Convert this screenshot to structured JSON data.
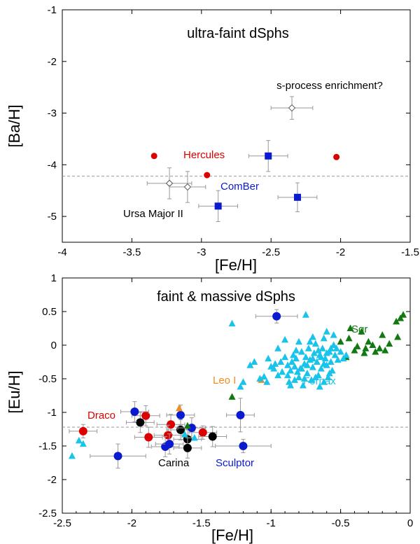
{
  "colors": {
    "red": "#dd0000",
    "blue": "#0a1ad0",
    "cyan": "#19c3e9",
    "green": "#127812",
    "orange": "#f28c1c",
    "black": "#000000",
    "grey": "#999999"
  },
  "chart_data": [
    {
      "type": "scatter",
      "title": "ultra-faint dSphs",
      "xlabel": "[Fe/H]",
      "ylabel": "[Ba/H]",
      "xlim": [
        -4,
        -1.5
      ],
      "ylim": [
        -5.5,
        -1
      ],
      "xticks": [
        "-4",
        "-3.5",
        "-3",
        "-2.5",
        "-2",
        "-1.5"
      ],
      "yticks": [
        "-1",
        "-2",
        "-3",
        "-4",
        "-5"
      ],
      "reference_line_y": -4.22,
      "annotations": [
        {
          "text": "s-process enrichment?",
          "color": "black"
        },
        {
          "text": "Hercules",
          "color": "red"
        },
        {
          "text": "ComBer",
          "color": "blue"
        },
        {
          "text": "Ursa Major II",
          "color": "black"
        }
      ],
      "series": [
        {
          "name": "Hercules",
          "marker": "circle",
          "color": "red",
          "points": [
            [
              -3.34,
              -3.83,
              0,
              0
            ],
            [
              -2.96,
              -4.2,
              0,
              0
            ],
            [
              -2.03,
              -3.85,
              0,
              0
            ]
          ]
        },
        {
          "name": "ComBer",
          "marker": "square",
          "color": "blue",
          "points": [
            [
              -2.52,
              -3.83,
              0.14,
              0.3
            ],
            [
              -2.31,
              -4.63,
              0.14,
              0.28
            ],
            [
              -2.88,
              -4.8,
              0.14,
              0.3
            ]
          ]
        },
        {
          "name": "Ursa Major II",
          "marker": "diamond",
          "color": "black",
          "points": [
            [
              -3.23,
              -4.36,
              0.16,
              0.3
            ],
            [
              -3.1,
              -4.43,
              0.13,
              0.3
            ]
          ]
        },
        {
          "name": "s-process enrichment?",
          "marker": "diamond",
          "color": "black",
          "points": [
            [
              -2.35,
              -2.9,
              0.15,
              0.22
            ]
          ]
        }
      ]
    },
    {
      "type": "scatter",
      "title": "faint & massive dSphs",
      "xlabel": "[Fe/H]",
      "ylabel": "[Eu/H]",
      "xlim": [
        -2.5,
        0
      ],
      "ylim": [
        -2.5,
        1
      ],
      "xticks": [
        "-2.5",
        "-2",
        "-1.5",
        "-1",
        "-0.5",
        "0"
      ],
      "yticks": [
        "1",
        "0.5",
        "0",
        "-0.5",
        "-1",
        "-1.5",
        "-2",
        "-2.5"
      ],
      "reference_line_y": -1.22,
      "annotations": [
        {
          "text": "Draco",
          "color": "red"
        },
        {
          "text": "Carina",
          "color": "black"
        },
        {
          "text": "Sculptor",
          "color": "blue"
        },
        {
          "text": "Leo I",
          "color": "orange"
        },
        {
          "text": "Fornax",
          "color": "cyan"
        },
        {
          "text": "Sgr",
          "color": "green"
        }
      ],
      "series": [
        {
          "name": "Draco",
          "marker": "circle",
          "color": "red",
          "points": [
            [
              -2.35,
              -1.28,
              0.1,
              0.1
            ],
            [
              -1.9,
              -1.05,
              0.1,
              0.15
            ],
            [
              -1.88,
              -1.37,
              0.1,
              0.15
            ],
            [
              -1.72,
              -1.18,
              0.1,
              0.15
            ],
            [
              -1.74,
              -1.34,
              0.1,
              0.15
            ],
            [
              -1.49,
              -1.3,
              0.1,
              0.1
            ]
          ]
        },
        {
          "name": "Carina",
          "marker": "circle",
          "color": "black",
          "points": [
            [
              -1.94,
              -1.15,
              0.1,
              0.15
            ],
            [
              -1.65,
              -1.26,
              0.1,
              0.15
            ],
            [
              -1.6,
              -1.4,
              0.1,
              0.15
            ],
            [
              -1.6,
              -1.53,
              0.1,
              0.15
            ],
            [
              -1.42,
              -1.36,
              0.1,
              0.15
            ]
          ]
        },
        {
          "name": "Sculptor",
          "marker": "circle",
          "color": "blue",
          "points": [
            [
              -2.1,
              -1.65,
              0.2,
              0.18
            ],
            [
              -1.98,
              -0.99,
              0.1,
              0.15
            ],
            [
              -1.65,
              -1.04,
              0.1,
              0.15
            ],
            [
              -1.76,
              -1.51,
              0.1,
              0.15
            ],
            [
              -1.73,
              -1.47,
              0.1,
              0.15
            ],
            [
              -1.57,
              -1.23,
              0.1,
              0.15
            ],
            [
              -1.22,
              -1.04,
              0.1,
              0.25
            ],
            [
              -1.2,
              -1.5,
              0.2,
              0.1
            ],
            [
              -0.96,
              0.43,
              0.15,
              0.1
            ]
          ]
        },
        {
          "name": "Leo I",
          "marker": "triangle",
          "color": "orange",
          "points": [
            [
              -1.66,
              -0.94
            ],
            [
              -1.07,
              -0.52
            ]
          ]
        },
        {
          "name": "Sgr",
          "marker": "triangle",
          "color": "green",
          "points": [
            [
              -1.28,
              -0.77
            ],
            [
              -1.6,
              -1.2
            ],
            [
              -0.2,
              0.15
            ],
            [
              -0.35,
              0.2
            ],
            [
              -0.43,
              0.25
            ],
            [
              -0.3,
              0.05
            ],
            [
              -0.32,
              -0.05
            ],
            [
              -0.38,
              -0.02
            ],
            [
              -0.27,
              0.0
            ],
            [
              -0.22,
              -0.05
            ],
            [
              -0.15,
              0.02
            ],
            [
              -0.1,
              0.35
            ],
            [
              -0.07,
              0.4
            ],
            [
              -0.05,
              0.45
            ],
            [
              -0.09,
              0.12
            ],
            [
              -0.44,
              0.1
            ],
            [
              -0.5,
              0.05
            ],
            [
              -0.25,
              -0.1
            ],
            [
              -0.18,
              -0.08
            ],
            [
              -0.33,
              -0.12
            ],
            [
              -0.46,
              -0.18
            ],
            [
              -0.4,
              -0.08
            ]
          ]
        },
        {
          "name": "Fornax",
          "marker": "triangle",
          "color": "cyan",
          "points": [
            [
              -2.43,
              -1.65
            ],
            [
              -2.38,
              -1.42
            ],
            [
              -2.35,
              -1.47
            ],
            [
              -1.62,
              -1.33
            ],
            [
              -1.55,
              -1.38
            ],
            [
              -1.03,
              -0.55
            ],
            [
              -1.08,
              -0.5
            ],
            [
              -1.15,
              -0.3
            ],
            [
              -1.2,
              -0.55
            ],
            [
              -1.22,
              -0.62
            ],
            [
              -1.28,
              0.32
            ],
            [
              -0.75,
              0.45
            ],
            [
              -1.05,
              -0.47
            ],
            [
              -1.12,
              -0.25
            ],
            [
              -0.98,
              -0.35
            ],
            [
              -0.95,
              -0.05
            ],
            [
              -0.9,
              0.08
            ],
            [
              -0.88,
              -0.45
            ],
            [
              -0.87,
              -0.55
            ],
            [
              -0.86,
              -0.6
            ],
            [
              -0.85,
              -0.25
            ],
            [
              -0.84,
              -0.15
            ],
            [
              -0.83,
              -0.32
            ],
            [
              -0.82,
              -0.2
            ],
            [
              -0.81,
              -0.4
            ],
            [
              -0.8,
              0.05
            ],
            [
              -0.79,
              -0.35
            ],
            [
              -0.78,
              -0.1
            ],
            [
              -0.77,
              -0.6
            ],
            [
              -0.76,
              -0.28
            ],
            [
              -0.75,
              -0.18
            ],
            [
              -0.74,
              -0.42
            ],
            [
              -0.73,
              -0.05
            ],
            [
              -0.72,
              -0.22
            ],
            [
              -0.71,
              -0.52
            ],
            [
              -0.7,
              -0.33
            ],
            [
              -0.69,
              -0.12
            ],
            [
              -0.68,
              0.02
            ],
            [
              -0.67,
              -0.25
            ],
            [
              -0.66,
              -0.45
            ],
            [
              -0.65,
              -0.15
            ],
            [
              -0.64,
              -0.35
            ],
            [
              -0.63,
              -0.05
            ],
            [
              -0.62,
              0.1
            ],
            [
              -0.61,
              -0.2
            ],
            [
              -0.6,
              -0.3
            ],
            [
              -0.59,
              -0.48
            ],
            [
              -0.58,
              -0.1
            ],
            [
              -0.57,
              -0.25
            ],
            [
              -0.56,
              -0.38
            ],
            [
              -0.55,
              0.0
            ],
            [
              -0.54,
              -0.15
            ],
            [
              -0.53,
              -0.05
            ],
            [
              -0.52,
              -0.22
            ],
            [
              -0.55,
              0.15
            ],
            [
              -0.6,
              0.2
            ],
            [
              -0.58,
              -0.42
            ],
            [
              -0.62,
              -0.55
            ],
            [
              -0.65,
              -0.62
            ],
            [
              -0.68,
              -0.48
            ],
            [
              -0.7,
              0.12
            ],
            [
              -0.72,
              0.05
            ],
            [
              -0.76,
              -0.5
            ],
            [
              -0.8,
              -0.48
            ],
            [
              -0.83,
              -0.52
            ],
            [
              -0.88,
              -0.3
            ],
            [
              -0.9,
              -0.18
            ],
            [
              -0.92,
              -0.4
            ],
            [
              -0.95,
              -0.45
            ],
            [
              -0.97,
              -0.28
            ],
            [
              -1.0,
              -0.32
            ],
            [
              -1.02,
              -0.2
            ],
            [
              -0.66,
              -0.08
            ],
            [
              -0.64,
              -0.18
            ],
            [
              -0.62,
              -0.28
            ],
            [
              -0.6,
              -0.12
            ],
            [
              -0.57,
              -0.05
            ],
            [
              -0.7,
              -0.2
            ],
            [
              -0.74,
              -0.3
            ],
            [
              -0.78,
              -0.35
            ],
            [
              -0.82,
              -0.08
            ],
            [
              -0.86,
              -0.38
            ],
            [
              -0.93,
              -0.25
            ],
            [
              -0.5,
              -0.1
            ],
            [
              -0.48,
              -0.2
            ],
            [
              -0.46,
              -0.15
            ]
          ]
        }
      ]
    }
  ]
}
